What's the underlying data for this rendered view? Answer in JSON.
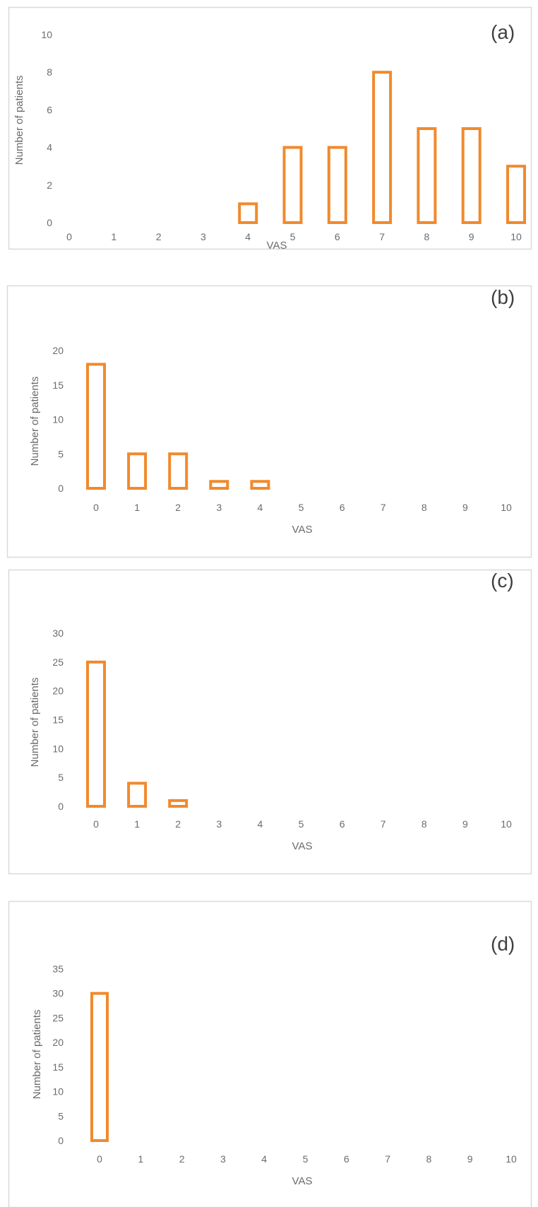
{
  "colors": {
    "bar_stroke": "#f08a2e",
    "frame": "#d9d9d9",
    "text": "#6b6b6b",
    "label": "#404040"
  },
  "chart_data": [
    {
      "type": "bar",
      "panel_label": "(a)",
      "xlabel": "VAS",
      "ylabel": "Number of patients",
      "categories": [
        "0",
        "1",
        "2",
        "3",
        "4",
        "5",
        "6",
        "7",
        "8",
        "9",
        "10"
      ],
      "values": [
        0,
        0,
        0,
        0,
        1,
        4,
        4,
        8,
        5,
        5,
        3
      ],
      "yticks": [
        "0",
        "2",
        "4",
        "6",
        "8",
        "10"
      ],
      "ylim": [
        0,
        10
      ],
      "grid": false
    },
    {
      "type": "bar",
      "panel_label": "(b)",
      "xlabel": "VAS",
      "ylabel": "Number of patients",
      "categories": [
        "0",
        "1",
        "2",
        "3",
        "4",
        "5",
        "6",
        "7",
        "8",
        "9",
        "10"
      ],
      "values": [
        18,
        5,
        5,
        1,
        1,
        0,
        0,
        0,
        0,
        0,
        0
      ],
      "yticks": [
        "0",
        "5",
        "10",
        "15",
        "20"
      ],
      "ylim": [
        0,
        20
      ],
      "grid": false
    },
    {
      "type": "bar",
      "panel_label": "(c)",
      "xlabel": "VAS",
      "ylabel": "Number of patients",
      "categories": [
        "0",
        "1",
        "2",
        "3",
        "4",
        "5",
        "6",
        "7",
        "8",
        "9",
        "10"
      ],
      "values": [
        25,
        4,
        1,
        0,
        0,
        0,
        0,
        0,
        0,
        0,
        0
      ],
      "yticks": [
        "0",
        "5",
        "10",
        "15",
        "20",
        "25",
        "30"
      ],
      "ylim": [
        0,
        30
      ],
      "grid": false
    },
    {
      "type": "bar",
      "panel_label": "(d)",
      "xlabel": "VAS",
      "ylabel": "Number of patients",
      "categories": [
        "0",
        "1",
        "2",
        "3",
        "4",
        "5",
        "6",
        "7",
        "8",
        "9",
        "10"
      ],
      "values": [
        30,
        0,
        0,
        0,
        0,
        0,
        0,
        0,
        0,
        0,
        0
      ],
      "yticks": [
        "0",
        "5",
        "10",
        "15",
        "20",
        "25",
        "30",
        "35"
      ],
      "ylim": [
        0,
        35
      ],
      "grid": false
    }
  ]
}
